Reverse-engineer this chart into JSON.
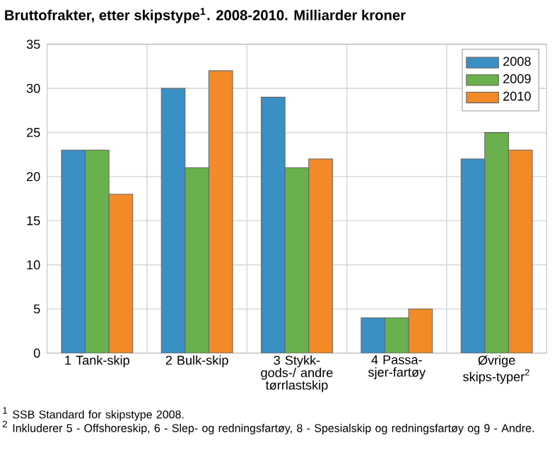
{
  "chart_data": {
    "type": "bar",
    "title": "Bruttofrakter, etter skipstype$^{1}$. 2008-2010. Milliarder kroner",
    "categories": [
      "1 Tank-skip",
      "2 Bulk-skip",
      "3 Stykk-gods-/ andre tørrlastskip",
      "4 Passa-sjer-fartøy",
      "Øvrige skips-typer$^{2}$"
    ],
    "series": [
      {
        "name": "2008",
        "color": "#3a8fc4",
        "values": [
          23,
          30,
          29,
          4,
          22
        ]
      },
      {
        "name": "2009",
        "color": "#6ab04c",
        "values": [
          23,
          21,
          21,
          4,
          25
        ]
      },
      {
        "name": "2010",
        "color": "#f28a27",
        "values": [
          18,
          32,
          22,
          5,
          23
        ]
      }
    ],
    "ylim": [
      0,
      35
    ],
    "yticks": [
      0,
      5,
      10,
      15,
      20,
      25,
      30,
      35
    ],
    "grid": true,
    "legend": "top right",
    "annotations": [
      "$^{1}$ SSB Standard for skipstype 2008.",
      "$^{2}$ Inkluderer 5 - Offshoreskip, 6 - Slep- og redningsfartøy, 8 - Spesialskip og redningsfartøy og 9 - Andre."
    ]
  }
}
